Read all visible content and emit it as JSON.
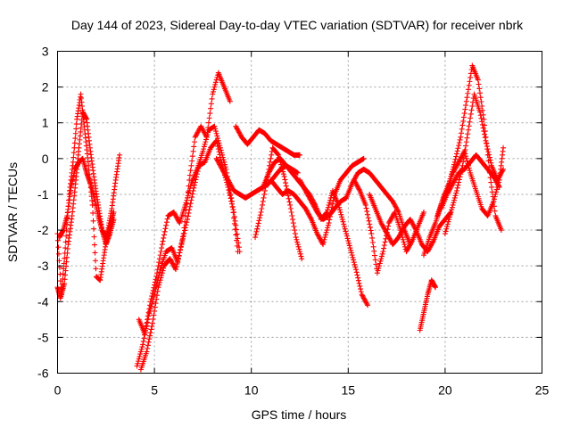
{
  "chart_data": {
    "type": "scatter",
    "title": "Day 144 of 2023, Sidereal Day-to-day VTEC variation (SDTVAR) for receiver nbrk",
    "xlabel": "GPS time / hours",
    "ylabel": "SDTVAR / TECUs",
    "xlim": [
      0,
      25
    ],
    "ylim": [
      -6,
      3
    ],
    "xticks": [
      0,
      5,
      10,
      15,
      20,
      25
    ],
    "yticks": [
      -6,
      -5,
      -4,
      -3,
      -2,
      -1,
      0,
      1,
      2,
      3
    ],
    "grid": true,
    "marker": "plus",
    "color": "#ff0000",
    "series": [
      {
        "name": "t1",
        "x": [
          0.0,
          0.2,
          0.4,
          0.6,
          0.8,
          1.0,
          1.2,
          1.4,
          1.6,
          1.8,
          2.0,
          2.2,
          2.4,
          2.6,
          2.8,
          3.0,
          3.2
        ],
        "y": [
          -2.1,
          -3.8,
          -2.5,
          -1.0,
          -0.1,
          1.1,
          1.8,
          0.8,
          -0.2,
          -1.3,
          -3.3,
          -3.4,
          -2.7,
          -2.0,
          -1.4,
          -0.6,
          0.1
        ]
      },
      {
        "name": "t2",
        "x": [
          0.0,
          0.15,
          0.35,
          0.55,
          0.75,
          0.95,
          1.1,
          1.3,
          1.5,
          1.7,
          1.9,
          2.1,
          2.3,
          2.5,
          2.7,
          2.9
        ],
        "y": [
          -3.6,
          -3.9,
          -3.5,
          -2.4,
          -1.6,
          -0.6,
          0.3,
          1.3,
          1.1,
          0.2,
          -0.6,
          -1.3,
          -2.0,
          -2.2,
          -1.9,
          -1.5
        ]
      },
      {
        "name": "t3",
        "x": [
          0.1,
          0.3,
          0.5,
          0.7,
          0.9,
          1.1,
          1.3,
          1.5,
          1.7,
          1.9,
          2.1,
          2.3,
          2.5,
          2.7,
          2.9
        ],
        "y": [
          -2.2,
          -2.0,
          -1.6,
          -0.8,
          -0.3,
          -0.1,
          0.0,
          -0.4,
          -0.7,
          -1.1,
          -1.6,
          -2.0,
          -2.4,
          -2.1,
          -1.7
        ]
      },
      {
        "name": "t4",
        "x": [
          4.1,
          4.4,
          4.7,
          5.0,
          5.3,
          5.6,
          5.9,
          6.2,
          6.5,
          6.8,
          7.1,
          7.4,
          7.7,
          8.0,
          8.3,
          8.6,
          8.9
        ],
        "y": [
          -5.8,
          -5.2,
          -4.4,
          -3.8,
          -3.1,
          -2.6,
          -2.5,
          -2.9,
          -2.1,
          -0.6,
          0.6,
          0.9,
          0.6,
          1.8,
          2.4,
          2.0,
          1.6
        ]
      },
      {
        "name": "t5",
        "x": [
          4.2,
          4.5,
          4.8,
          5.1,
          5.4,
          5.7,
          6.0,
          6.3,
          6.6,
          6.9,
          7.2,
          7.5,
          7.8,
          8.1,
          8.4,
          8.7,
          9.0,
          9.3
        ],
        "y": [
          -4.5,
          -4.9,
          -4.0,
          -3.3,
          -2.4,
          -1.6,
          -1.5,
          -1.8,
          -1.3,
          -0.7,
          -0.3,
          0.2,
          0.8,
          0.9,
          0.3,
          -0.3,
          -1.2,
          -2.6
        ]
      },
      {
        "name": "t6",
        "x": [
          4.3,
          4.6,
          4.9,
          5.2,
          5.5,
          5.8,
          6.1,
          6.4,
          6.7,
          7.0,
          7.3,
          7.6,
          7.9,
          8.2,
          8.5,
          8.8,
          9.1,
          9.4
        ],
        "y": [
          -5.9,
          -5.4,
          -4.6,
          -3.6,
          -3.0,
          -2.8,
          -3.1,
          -2.4,
          -1.7,
          -0.9,
          -0.2,
          -0.1,
          0.3,
          0.5,
          -0.2,
          -0.8,
          -1.5,
          -2.6
        ]
      },
      {
        "name": "t7",
        "x": [
          8.2,
          8.5,
          8.8,
          9.1,
          9.4,
          9.7,
          10.0,
          10.3,
          10.6,
          10.9,
          11.2,
          11.5,
          11.8,
          12.1,
          12.4
        ],
        "y": [
          0.0,
          -0.3,
          -0.6,
          -0.9,
          -1.0,
          -1.1,
          -1.0,
          -0.9,
          -0.8,
          -0.7,
          -0.5,
          -0.3,
          -0.2,
          -0.3,
          -0.4
        ]
      },
      {
        "name": "t8",
        "x": [
          9.2,
          9.5,
          9.8,
          10.1,
          10.4,
          10.7,
          11.0,
          11.3,
          11.6,
          11.9,
          12.2,
          12.5
        ],
        "y": [
          0.9,
          0.6,
          0.4,
          0.6,
          0.8,
          0.7,
          0.5,
          0.4,
          0.3,
          0.2,
          0.1,
          0.1
        ]
      },
      {
        "name": "t9",
        "x": [
          10.2,
          10.5,
          10.8,
          11.1,
          11.4,
          11.7,
          12.0,
          12.3,
          12.6
        ],
        "y": [
          -2.2,
          -1.5,
          -0.6,
          0.3,
          0.1,
          -0.5,
          -1.3,
          -2.2,
          -2.8
        ]
      },
      {
        "name": "t10",
        "x": [
          10.6,
          10.9,
          11.2,
          11.5,
          11.8,
          12.1,
          12.4,
          12.7,
          13.0,
          13.3,
          13.6,
          13.9,
          14.2,
          14.5,
          14.8,
          15.1,
          15.4,
          15.7,
          16.0
        ],
        "y": [
          -0.8,
          -0.4,
          -0.1,
          0.0,
          -0.2,
          -0.4,
          -0.6,
          -0.8,
          -1.0,
          -1.3,
          -1.7,
          -1.5,
          -0.9,
          -1.3,
          -1.9,
          -2.5,
          -3.1,
          -3.8,
          -4.1
        ]
      },
      {
        "name": "t11",
        "x": [
          11.0,
          11.3,
          11.6,
          11.9,
          12.2,
          12.5,
          12.8,
          13.1,
          13.4,
          13.7,
          14.0,
          14.3,
          14.6,
          14.9,
          15.2,
          15.5,
          15.8
        ],
        "y": [
          -0.6,
          -0.8,
          -1.0,
          -0.9,
          -1.0,
          -1.2,
          -1.4,
          -1.7,
          -2.1,
          -2.4,
          -1.8,
          -1.0,
          -0.6,
          -0.4,
          -0.2,
          -0.1,
          0.0
        ]
      },
      {
        "name": "t12",
        "x": [
          12.5,
          12.8,
          13.1,
          13.4,
          13.7,
          14.0,
          14.3,
          14.6,
          14.9,
          15.2,
          15.5,
          15.8,
          16.1,
          16.4,
          16.7,
          17.0,
          17.3,
          17.6,
          17.9,
          18.2
        ],
        "y": [
          -0.6,
          -0.9,
          -1.2,
          -1.5,
          -1.7,
          -1.6,
          -1.4,
          -1.2,
          -1.1,
          -0.7,
          -0.4,
          -0.3,
          -0.4,
          -0.6,
          -0.8,
          -1.0,
          -1.2,
          -1.5,
          -2.0,
          -2.4
        ]
      },
      {
        "name": "t13",
        "x": [
          15.3,
          15.6,
          15.9,
          16.2,
          16.5,
          16.8,
          17.1,
          17.4,
          17.7,
          18.0,
          18.3,
          18.6,
          18.9
        ],
        "y": [
          -0.6,
          -0.9,
          -1.3,
          -2.1,
          -3.2,
          -2.6,
          -1.8,
          -1.5,
          -2.0,
          -2.6,
          -2.3,
          -1.9,
          -1.5
        ]
      },
      {
        "name": "t14",
        "x": [
          16.1,
          16.4,
          16.7,
          17.0,
          17.3,
          17.6,
          17.9,
          18.2,
          18.5,
          18.8,
          19.1,
          19.4,
          19.7,
          20.0,
          20.3
        ],
        "y": [
          -1.0,
          -1.4,
          -1.8,
          -2.1,
          -2.4,
          -2.2,
          -1.9,
          -1.7,
          -2.0,
          -2.4,
          -2.6,
          -2.3,
          -1.9,
          -1.7,
          -1.5
        ]
      },
      {
        "name": "t15",
        "x": [
          18.9,
          19.2,
          19.5,
          19.8,
          20.1,
          20.4,
          20.7,
          21.0,
          21.3,
          21.6,
          21.9,
          22.2,
          22.5,
          22.8,
          23.0
        ],
        "y": [
          -2.7,
          -2.2,
          -1.8,
          -1.3,
          -0.9,
          -0.4,
          -0.1,
          0.2,
          -0.4,
          -0.9,
          -1.4,
          -1.6,
          -1.2,
          -0.6,
          0.3
        ]
      },
      {
        "name": "t16",
        "x": [
          18.7,
          18.9,
          19.1,
          19.3,
          19.5
        ],
        "y": [
          -4.8,
          -4.3,
          -3.8,
          -3.4,
          -3.6
        ]
      },
      {
        "name": "t17",
        "x": [
          19.8,
          20.1,
          20.4,
          20.7,
          21.0,
          21.3,
          21.6,
          21.9,
          22.2,
          22.5,
          22.8
        ],
        "y": [
          -1.4,
          -1.0,
          -0.7,
          -0.4,
          -0.3,
          -0.1,
          0.1,
          -0.1,
          -0.3,
          -0.5,
          -0.8
        ]
      },
      {
        "name": "t18",
        "x": [
          19.6,
          19.9,
          20.2,
          20.5,
          20.8,
          21.1,
          21.4,
          21.7,
          22.0,
          22.3,
          22.6,
          22.9
        ],
        "y": [
          -1.6,
          -1.1,
          -0.7,
          -0.1,
          0.6,
          1.6,
          2.6,
          2.2,
          1.1,
          -0.4,
          -1.6,
          -2.0
        ]
      },
      {
        "name": "t19",
        "x": [
          20.0,
          20.3,
          20.6,
          20.9,
          21.2,
          21.5,
          21.8,
          22.1,
          22.4,
          22.7,
          23.0
        ],
        "y": [
          -2.1,
          -1.5,
          -0.9,
          -0.2,
          0.8,
          1.8,
          1.3,
          0.5,
          -0.2,
          -0.6,
          -0.3
        ]
      }
    ]
  }
}
